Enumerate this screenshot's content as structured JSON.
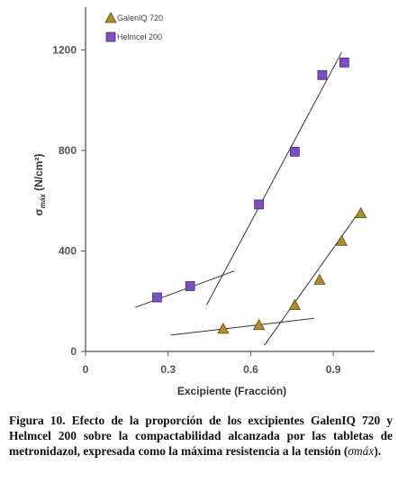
{
  "chart_data": {
    "type": "scatter",
    "xlabel": "Excipiente (Fracción)",
    "ylabel": "σ",
    "ylabel_sub": "máx",
    "ylabel_unit": "(N/cm²)",
    "xlim": [
      0,
      1.05
    ],
    "ylim": [
      0,
      1370
    ],
    "xticks": [
      0,
      0.3,
      0.6,
      0.9
    ],
    "xtick_labels": [
      "0",
      "0.3",
      "0.6",
      "0.9"
    ],
    "yticks": [
      0,
      400,
      800,
      1200
    ],
    "ytick_labels": [
      "0",
      "400",
      "800",
      "1200"
    ],
    "grid": false,
    "legend_position": "top-left",
    "series": [
      {
        "name": "GalenIQ 720",
        "marker": "triangle",
        "color": "#a8902a",
        "points": [
          {
            "x": 0.5,
            "y": 90
          },
          {
            "x": 0.63,
            "y": 105
          },
          {
            "x": 0.76,
            "y": 185
          },
          {
            "x": 0.85,
            "y": 285
          },
          {
            "x": 0.93,
            "y": 440
          },
          {
            "x": 1.0,
            "y": 550
          }
        ],
        "fits": [
          {
            "x1": 0.31,
            "y1": 65,
            "x2": 0.83,
            "y2": 132
          },
          {
            "x1": 0.65,
            "y1": 25,
            "x2": 1.0,
            "y2": 565
          }
        ]
      },
      {
        "name": "Helmcel 200",
        "marker": "square",
        "color": "#7b4fc0",
        "points": [
          {
            "x": 0.26,
            "y": 215
          },
          {
            "x": 0.38,
            "y": 260
          },
          {
            "x": 0.63,
            "y": 585
          },
          {
            "x": 0.76,
            "y": 795
          },
          {
            "x": 0.86,
            "y": 1100
          },
          {
            "x": 0.94,
            "y": 1150
          }
        ],
        "fits": [
          {
            "x1": 0.18,
            "y1": 175,
            "x2": 0.54,
            "y2": 320
          },
          {
            "x1": 0.44,
            "y1": 185,
            "x2": 0.93,
            "y2": 1190
          }
        ]
      }
    ]
  },
  "caption": {
    "main": "Figura 10. Efecto de la proporción de los excipientes GalenIQ 720 y Helmcel 200 sobre la compactabilidad alcanzada por las tabletas de metronidazol, expresada como la máxima resistencia a la tensión (",
    "symbol": "σmáx",
    "tail": ")."
  }
}
